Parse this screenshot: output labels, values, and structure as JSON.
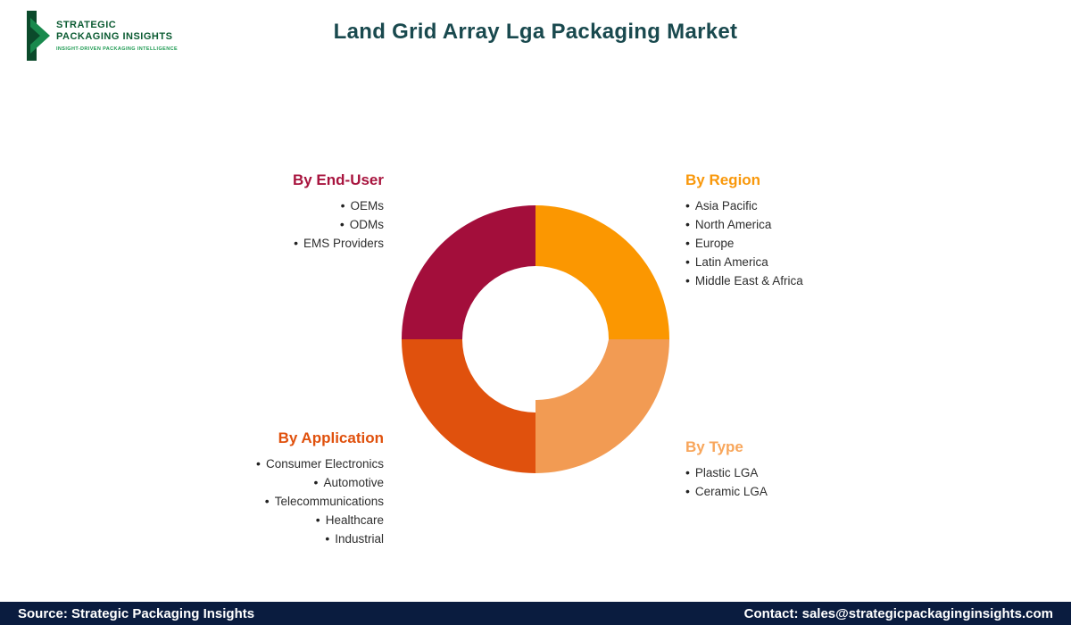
{
  "header": {
    "logo": {
      "line1": "STRATEGIC",
      "line2": "PACKAGING INSIGHTS",
      "tagline": "INSIGHT-DRIVEN PACKAGING INTELLIGENCE"
    },
    "title": "Land Grid Array Lga Packaging Market",
    "title_color": "#19494E"
  },
  "chart_data": {
    "type": "pie",
    "donut": true,
    "title": "Land Grid Array Lga Packaging Market",
    "legend_position": "around-chart",
    "segments": [
      {
        "name": "By Region",
        "value": 25,
        "position": "top-right",
        "color": "#FB9701"
      },
      {
        "name": "By Type",
        "value": 25,
        "position": "bottom-right",
        "color": "#F29B53"
      },
      {
        "name": "By Application",
        "value": 25,
        "position": "bottom-left",
        "color": "#E0510D"
      },
      {
        "name": "By End-User",
        "value": 25,
        "position": "top-left",
        "color": "#A30E3B"
      }
    ]
  },
  "groups": {
    "end_user": {
      "heading": "By End-User",
      "color": "#A8143E",
      "items": [
        "OEMs",
        "ODMs",
        "EMS Providers"
      ]
    },
    "region": {
      "heading": "By Region",
      "color": "#F9980B",
      "items": [
        "Asia Pacific",
        "North America",
        "Europe",
        "Latin America",
        "Middle East & Africa"
      ]
    },
    "application": {
      "heading": "By Application",
      "color": "#E0510D",
      "items": [
        "Consumer Electronics",
        "Automotive",
        "Telecommunications",
        "Healthcare",
        "Industrial"
      ]
    },
    "type": {
      "heading": "By Type",
      "color": "#F8A65B",
      "items": [
        "Plastic LGA",
        "Ceramic LGA"
      ]
    }
  },
  "footer": {
    "bg": "#0A1C3F",
    "source": "Source: Strategic Packaging Insights",
    "contact": "Contact: sales@strategicpackaginginsights.com"
  }
}
